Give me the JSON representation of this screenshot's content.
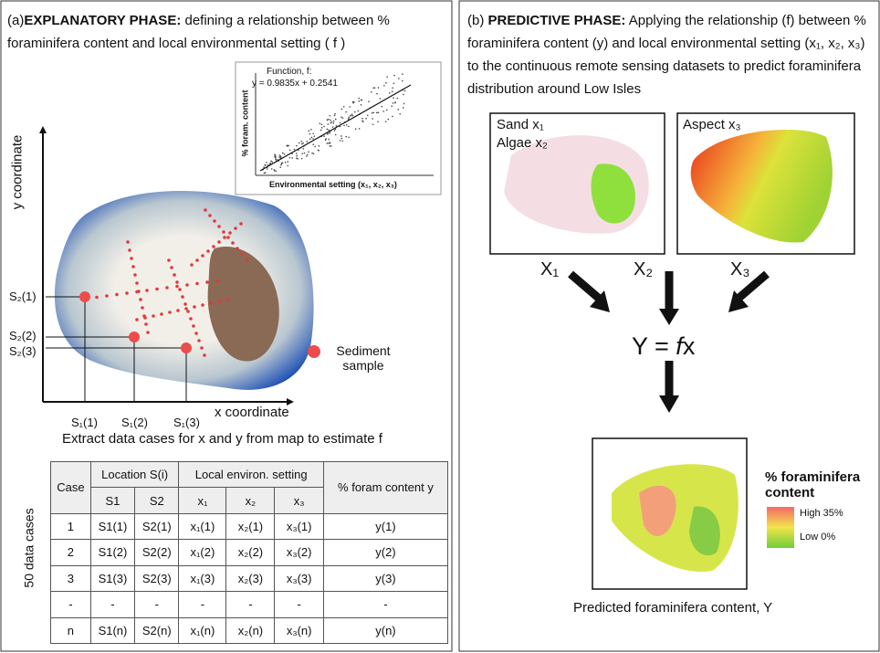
{
  "panel_a": {
    "label": "(a)",
    "heading": "EXPLANATORY PHASE:",
    "description": "defining a relationship between % foraminifera content and local environmental setting ( f )",
    "inset": {
      "title": "Function, f:",
      "equation": "y = 0.9835x + 0.2541",
      "y_label": "% foram. content",
      "x_label": "Environmental setting (x₁, x₂, x₃)"
    },
    "y_axis": "y coordinate",
    "x_axis": "x coordinate",
    "y_labels": [
      "S₂(1)",
      "S₂(2)",
      "S₂(3)"
    ],
    "x_labels": [
      "S₁(1)",
      "S₁(2)",
      "S₁(3)"
    ],
    "legend": "Sediment sample",
    "caption": "Extract data cases for x and y from map to estimate f",
    "side_label": "50 data cases",
    "table": {
      "header": [
        "Case",
        "Location S(i)",
        "Local environ. setting",
        "% foram content y"
      ],
      "subheader": [
        "S1",
        "S2",
        "x₁",
        "x₂",
        "x₃"
      ],
      "rows": [
        [
          "1",
          "S1(1)",
          "S2(1)",
          "x₁(1)",
          "x₂(1)",
          "x₃(1)",
          "y(1)"
        ],
        [
          "2",
          "S1(2)",
          "S2(2)",
          "x₁(2)",
          "x₂(2)",
          "x₃(2)",
          "y(2)"
        ],
        [
          "3",
          "S1(3)",
          "S2(3)",
          "x₁(3)",
          "x₂(3)",
          "x₃(3)",
          "y(3)"
        ],
        [
          "-",
          "-",
          "-",
          "-",
          "-",
          "-",
          "-"
        ],
        [
          "n",
          "S1(n)",
          "S2(n)",
          "x₁(n)",
          "x₂(n)",
          "x₃(n)",
          "y(n)"
        ]
      ]
    }
  },
  "panel_b": {
    "label": "(b)",
    "heading": "PREDICTIVE PHASE:",
    "description": "Applying the relationship (f) between % foraminifera content (y) and local environmental setting (x₁, x₂, x₃) to the continuous remote sensing datasets to predict foraminifera distribution around Low Isles",
    "box1": [
      "Sand x₁",
      "Algae x₂"
    ],
    "box2": "Aspect x₃",
    "inputs": [
      "X₁",
      "X₂",
      "X₃"
    ],
    "equation": [
      "Y = ",
      "f",
      "x"
    ],
    "legend_title": "% foraminifera content",
    "legend_high": "High 35%",
    "legend_low": "Low 0%",
    "caption": "Predicted foraminifera content, Y"
  }
}
